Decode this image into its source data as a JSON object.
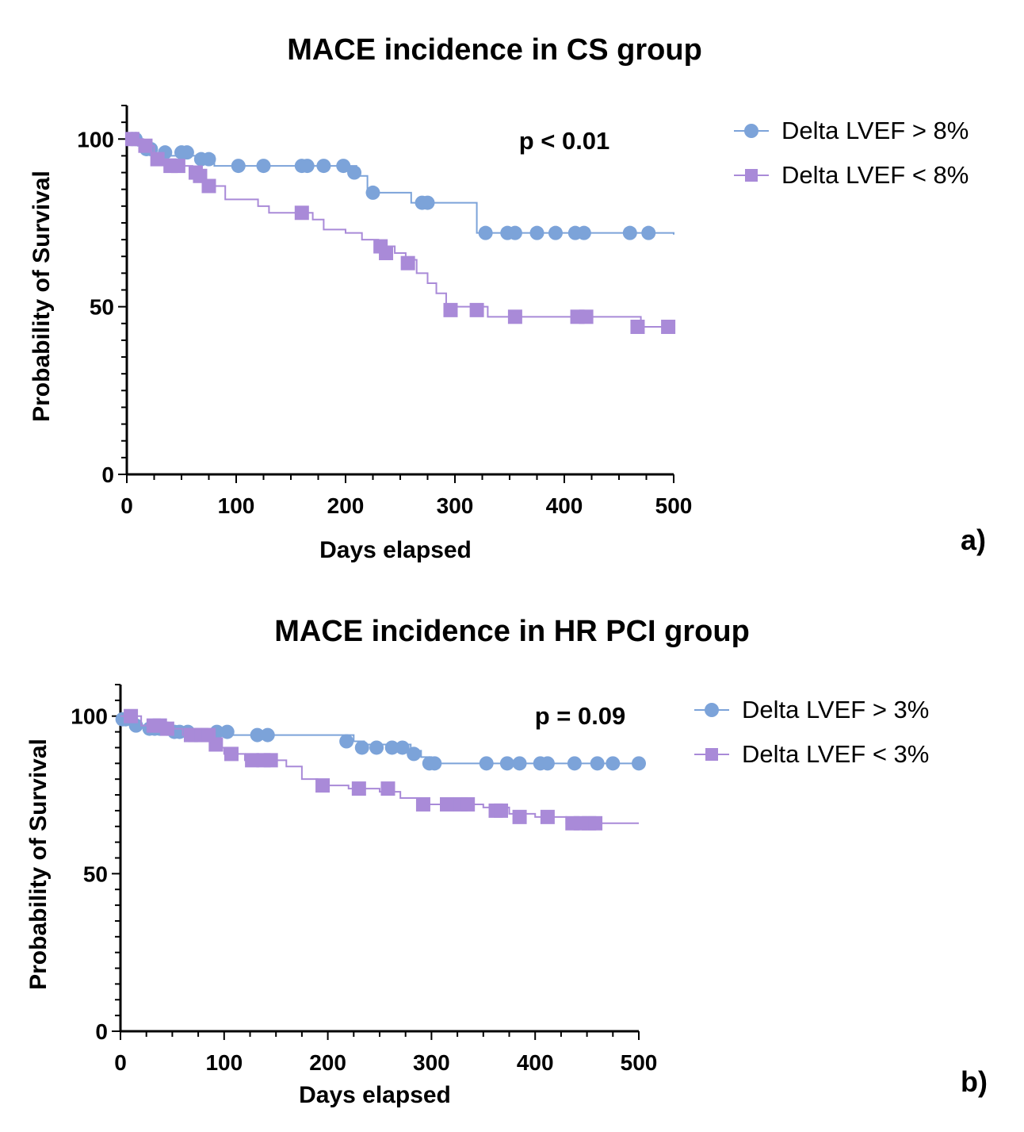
{
  "figure": {
    "panel_a_letter": "a)",
    "panel_b_letter": "b)"
  },
  "colors": {
    "series1": "#7ca3d9",
    "series2": "#a98ad8",
    "axis": "#000000"
  },
  "chart_data": [
    {
      "type": "line",
      "subtype": "kaplan-meier",
      "title": "MACE incidence in CS group",
      "xlabel": "Days elapsed",
      "ylabel": "Probability of Survival",
      "xlim": [
        0,
        500
      ],
      "ylim": [
        0,
        110
      ],
      "x_ticks": [
        0,
        100,
        200,
        300,
        400,
        500
      ],
      "y_ticks": [
        0,
        50,
        100
      ],
      "annotation": "p < 0.01",
      "legend_position": "top-right outside",
      "series": [
        {
          "name": "Delta LVEF > 8%",
          "marker": "circle",
          "steps": [
            [
              0,
              100
            ],
            [
              10,
              98
            ],
            [
              15,
              96
            ],
            [
              25,
              95
            ],
            [
              80,
              92
            ],
            [
              210,
              89
            ],
            [
              220,
              84
            ],
            [
              260,
              81
            ],
            [
              320,
              72
            ],
            [
              500,
              71.5
            ]
          ],
          "censored": [
            [
              5,
              100
            ],
            [
              8,
              100
            ],
            [
              18,
              97
            ],
            [
              22,
              97
            ],
            [
              35,
              96
            ],
            [
              50,
              96
            ],
            [
              55,
              96
            ],
            [
              68,
              94
            ],
            [
              75,
              94
            ],
            [
              102,
              92
            ],
            [
              125,
              92
            ],
            [
              160,
              92
            ],
            [
              165,
              92
            ],
            [
              180,
              92
            ],
            [
              198,
              92
            ],
            [
              208,
              90
            ],
            [
              225,
              84
            ],
            [
              270,
              81
            ],
            [
              275,
              81
            ],
            [
              328,
              72
            ],
            [
              348,
              72
            ],
            [
              355,
              72
            ],
            [
              375,
              72
            ],
            [
              392,
              72
            ],
            [
              410,
              72
            ],
            [
              418,
              72
            ],
            [
              460,
              72
            ],
            [
              477,
              72
            ]
          ]
        },
        {
          "name": "Delta LVEF < 8%",
          "marker": "square",
          "steps": [
            [
              0,
              100
            ],
            [
              15,
              98
            ],
            [
              25,
              94
            ],
            [
              45,
              92
            ],
            [
              60,
              90
            ],
            [
              65,
              88
            ],
            [
              72,
              86
            ],
            [
              90,
              82
            ],
            [
              120,
              80
            ],
            [
              130,
              78
            ],
            [
              170,
              76
            ],
            [
              180,
              73
            ],
            [
              200,
              72
            ],
            [
              215,
              70
            ],
            [
              230,
              68
            ],
            [
              245,
              66
            ],
            [
              255,
              64
            ],
            [
              265,
              60
            ],
            [
              275,
              57
            ],
            [
              283,
              54
            ],
            [
              292,
              50
            ],
            [
              330,
              47
            ],
            [
              470,
              44
            ],
            [
              500,
              44
            ]
          ],
          "censored": [
            [
              5,
              100
            ],
            [
              17,
              98
            ],
            [
              28,
              94
            ],
            [
              40,
              92
            ],
            [
              47,
              92
            ],
            [
              63,
              90
            ],
            [
              67,
              89
            ],
            [
              75,
              86
            ],
            [
              160,
              78
            ],
            [
              232,
              68
            ],
            [
              237,
              66
            ],
            [
              257,
              63
            ],
            [
              296,
              49
            ],
            [
              320,
              49
            ],
            [
              355,
              47
            ],
            [
              412,
              47
            ],
            [
              420,
              47
            ],
            [
              467,
              44
            ],
            [
              495,
              44
            ]
          ]
        }
      ]
    },
    {
      "type": "line",
      "subtype": "kaplan-meier",
      "title": "MACE incidence in HR PCI group",
      "xlabel": "Days elapsed",
      "ylabel": "Probability of Survival",
      "xlim": [
        0,
        500
      ],
      "ylim": [
        0,
        110
      ],
      "x_ticks": [
        0,
        100,
        200,
        300,
        400,
        500
      ],
      "y_ticks": [
        0,
        50,
        100
      ],
      "annotation": "p = 0.09",
      "legend_position": "top-right outside",
      "series": [
        {
          "name": "Delta LVEF > 3%",
          "marker": "circle",
          "steps": [
            [
              0,
              99
            ],
            [
              15,
              97
            ],
            [
              25,
              96
            ],
            [
              60,
              95
            ],
            [
              100,
              94
            ],
            [
              200,
              94
            ],
            [
              225,
              92
            ],
            [
              235,
              91
            ],
            [
              280,
              89
            ],
            [
              290,
              87
            ],
            [
              300,
              85
            ],
            [
              500,
              85
            ]
          ],
          "censored": [
            [
              2,
              99
            ],
            [
              5,
              99
            ],
            [
              15,
              97
            ],
            [
              28,
              96
            ],
            [
              33,
              96
            ],
            [
              38,
              96
            ],
            [
              45,
              96
            ],
            [
              52,
              95
            ],
            [
              57,
              95
            ],
            [
              65,
              95
            ],
            [
              93,
              95
            ],
            [
              103,
              95
            ],
            [
              132,
              94
            ],
            [
              142,
              94
            ],
            [
              218,
              92
            ],
            [
              233,
              90
            ],
            [
              247,
              90
            ],
            [
              262,
              90
            ],
            [
              272,
              90
            ],
            [
              283,
              88
            ],
            [
              298,
              85
            ],
            [
              303,
              85
            ],
            [
              353,
              85
            ],
            [
              373,
              85
            ],
            [
              385,
              85
            ],
            [
              405,
              85
            ],
            [
              412,
              85
            ],
            [
              438,
              85
            ],
            [
              460,
              85
            ],
            [
              475,
              85
            ],
            [
              500,
              85
            ]
          ]
        },
        {
          "name": "Delta LVEF < 3%",
          "marker": "square",
          "steps": [
            [
              0,
              100
            ],
            [
              20,
              97
            ],
            [
              30,
              96
            ],
            [
              60,
              94
            ],
            [
              80,
              93
            ],
            [
              95,
              90
            ],
            [
              100,
              88
            ],
            [
              120,
              86
            ],
            [
              160,
              84
            ],
            [
              175,
              80
            ],
            [
              190,
              78
            ],
            [
              220,
              77
            ],
            [
              250,
              76
            ],
            [
              270,
              74
            ],
            [
              290,
              72
            ],
            [
              350,
              71
            ],
            [
              375,
              69
            ],
            [
              400,
              68
            ],
            [
              430,
              66
            ],
            [
              500,
              66
            ]
          ],
          "censored": [
            [
              10,
              100
            ],
            [
              32,
              97
            ],
            [
              38,
              97
            ],
            [
              45,
              96
            ],
            [
              68,
              94
            ],
            [
              72,
              94
            ],
            [
              78,
              94
            ],
            [
              85,
              94
            ],
            [
              92,
              91
            ],
            [
              107,
              88
            ],
            [
              127,
              86
            ],
            [
              138,
              86
            ],
            [
              145,
              86
            ],
            [
              195,
              78
            ],
            [
              230,
              77
            ],
            [
              258,
              77
            ],
            [
              292,
              72
            ],
            [
              315,
              72
            ],
            [
              328,
              72
            ],
            [
              335,
              72
            ],
            [
              362,
              70
            ],
            [
              367,
              70
            ],
            [
              385,
              68
            ],
            [
              412,
              68
            ],
            [
              436,
              66
            ],
            [
              444,
              66
            ],
            [
              452,
              66
            ],
            [
              458,
              66
            ]
          ]
        }
      ]
    }
  ]
}
